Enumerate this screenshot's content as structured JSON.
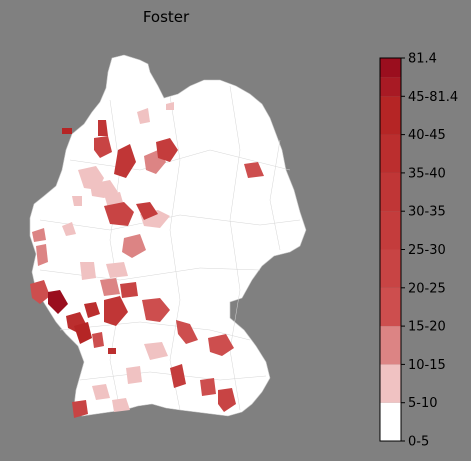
{
  "title": "Foster",
  "colors": {
    "background": "#808080",
    "land": "#ffffff",
    "border": "#c8c8c8"
  },
  "legend": {
    "ticks": [
      "0-5",
      "5-10",
      "10-15",
      "15-20",
      "20-25",
      "25-30",
      "30-35",
      "35-40",
      "40-45",
      "45-81.4",
      "81.4"
    ],
    "bins": [
      {
        "range": "0-5",
        "color": "#ffffff"
      },
      {
        "range": "5-10",
        "color": "#f0c2c2"
      },
      {
        "range": "10-15",
        "color": "#dc8484"
      },
      {
        "range": "15-20",
        "color": "#cd4e4e"
      },
      {
        "range": "20-25",
        "color": "#c84444"
      },
      {
        "range": "25-30",
        "color": "#c43c3c"
      },
      {
        "range": "30-35",
        "color": "#c03636"
      },
      {
        "range": "35-40",
        "color": "#bb2e2e"
      },
      {
        "range": "40-45",
        "color": "#b52525"
      },
      {
        "range": "45-81.4",
        "color": "#a81a24"
      },
      {
        "range": "81.4",
        "color": "#9a0e1e"
      }
    ]
  }
}
